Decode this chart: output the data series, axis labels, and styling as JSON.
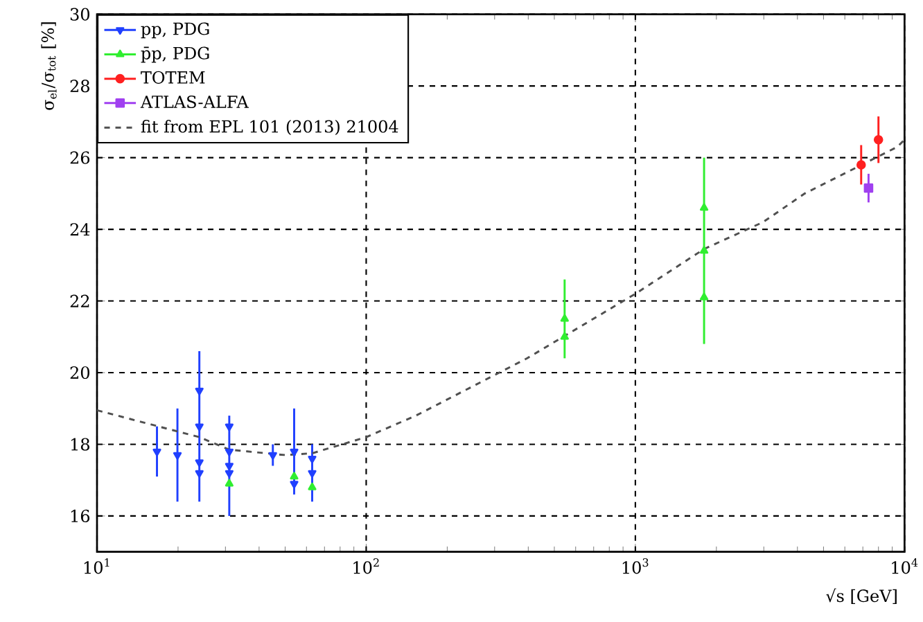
{
  "chart_data": {
    "type": "scatter",
    "xlabel": "√s  [GeV]",
    "ylabel": "σ$_{el}$/σ$_{tot}$  [%]",
    "log": "x",
    "grid": true,
    "legend": "top left",
    "xlim": [
      10,
      10000
    ],
    "ylim": [
      15,
      30
    ],
    "xticks": [
      {
        "value": 10,
        "label": "10$^{1}$"
      },
      {
        "value": 100,
        "label": "10$^{2}$"
      },
      {
        "value": 1000,
        "label": "10$^{3}$"
      },
      {
        "value": 10000,
        "label": "10$^{4}$"
      }
    ],
    "yticks": [
      16,
      18,
      20,
      22,
      24,
      26,
      28,
      30
    ],
    "series": [
      {
        "name": "pp, PDG",
        "color": "#2040ff",
        "marker": "triangle down",
        "x": [
          16.7,
          19.9,
          24,
          24,
          24,
          24,
          31,
          31,
          31,
          31,
          45,
          54,
          54,
          63,
          63
        ],
        "values": [
          17.8,
          17.7,
          19.5,
          18.5,
          17.5,
          17.2,
          18.5,
          17.8,
          17.4,
          17.2,
          17.7,
          17.8,
          16.9,
          17.6,
          17.2
        ],
        "errors": [
          0.7,
          1.3,
          null,
          2.1,
          null,
          null,
          null,
          null,
          1.4,
          null,
          0.3,
          1.2,
          null,
          null,
          0.8
        ]
      },
      {
        "name": "p̄p, PDG",
        "color": "#30ee30",
        "marker": "triangle",
        "x": [
          31,
          54,
          63,
          546,
          546,
          1800,
          1800,
          1800
        ],
        "values": [
          16.9,
          17.1,
          16.8,
          21.5,
          21.0,
          24.6,
          23.4,
          22.1
        ],
        "errors": [
          null,
          null,
          null,
          1.1,
          null,
          null,
          2.6,
          null
        ]
      },
      {
        "name": "TOTEM",
        "color": "#ff2020",
        "marker": "circle",
        "x": [
          6900,
          8000
        ],
        "values": [
          25.8,
          26.5
        ],
        "errors": [
          0.55,
          0.65
        ]
      },
      {
        "name": "ATLAS-ALFA",
        "color": "#a040f0",
        "marker": "square",
        "x": [
          7350
        ],
        "values": [
          25.15
        ],
        "errors": [
          0.4
        ]
      },
      {
        "name": "fit from EPL 101 (2013) 21004",
        "type": "line",
        "line_style": "dashed",
        "marker": "none",
        "color": "#505050",
        "x": [
          10,
          24,
          31,
          50,
          63,
          100,
          153,
          396,
          1000,
          1800,
          2980,
          4260,
          9400,
          10000
        ],
        "values": [
          18.95,
          18.2,
          17.85,
          17.7,
          17.75,
          18.2,
          18.8,
          20.4,
          22.2,
          23.45,
          24.2,
          25.0,
          26.3,
          26.5
        ]
      }
    ]
  }
}
